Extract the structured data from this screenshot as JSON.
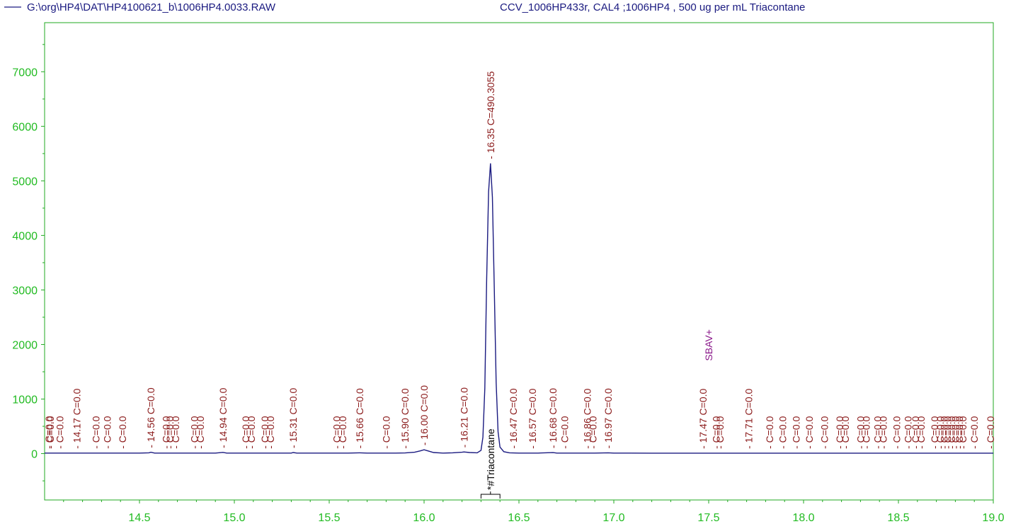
{
  "header": {
    "file_path": "G:\\org\\HP4\\DAT\\HP4100621_b\\1006HP4.0033.RAW",
    "sample_info": "CCV_1006HP433r, CAL4 ;1006HP4 , 500 ug per mL Triacontane"
  },
  "colors": {
    "trace": "#1a1a80",
    "axis_ticks": "#22bb22",
    "peak_labels": "#8b1a1a",
    "sbav_label": "#8b1a8b",
    "frame": "#22aa22"
  },
  "chart_data": {
    "type": "line",
    "title": "",
    "xlabel": "",
    "ylabel": "",
    "xlim": [
      14.0,
      19.0
    ],
    "ylim": [
      -850,
      7900
    ],
    "x_ticks": [
      14.5,
      15.0,
      15.5,
      16.0,
      16.5,
      17.0,
      17.5,
      18.0,
      18.5,
      19.0
    ],
    "x_tick_labels": [
      "14.5",
      "15.0",
      "15.5",
      "16.0",
      "16.5",
      "17.0",
      "17.5",
      "18.0",
      "18.5",
      "19.0"
    ],
    "y_ticks": [
      0,
      1000,
      2000,
      3000,
      4000,
      5000,
      6000,
      7000
    ],
    "y_tick_labels": [
      "0",
      "1000",
      "2000",
      "3000",
      "4000",
      "5000",
      "6000",
      "7000"
    ],
    "series": [
      {
        "x": [
          14.0,
          14.05,
          14.1,
          14.15,
          14.2,
          14.3,
          14.4,
          14.5,
          14.55,
          14.56,
          14.58,
          14.7,
          14.8,
          14.9,
          14.94,
          14.96,
          15.0,
          15.1,
          15.2,
          15.3,
          15.31,
          15.33,
          15.4,
          15.5,
          15.6,
          15.66,
          15.7,
          15.8,
          15.85,
          15.9,
          15.95,
          15.98,
          16.0,
          16.02,
          16.05,
          16.1,
          16.15,
          16.2,
          16.21,
          16.24,
          16.28,
          16.3,
          16.31,
          16.32,
          16.33,
          16.34,
          16.35,
          16.36,
          16.37,
          16.38,
          16.39,
          16.4,
          16.42,
          16.45,
          16.5,
          16.6,
          16.68,
          16.7,
          16.8,
          16.9,
          16.97,
          17.0,
          17.2,
          17.4,
          17.6,
          17.8,
          18.0,
          18.2,
          18.4,
          18.6,
          18.8,
          19.0
        ],
        "y": [
          10,
          10,
          10,
          10,
          10,
          10,
          10,
          10,
          15,
          25,
          10,
          10,
          10,
          10,
          22,
          10,
          10,
          10,
          10,
          10,
          20,
          10,
          10,
          10,
          10,
          15,
          10,
          10,
          10,
          12,
          25,
          50,
          70,
          50,
          20,
          10,
          15,
          25,
          30,
          20,
          15,
          60,
          300,
          1200,
          3200,
          4800,
          5320,
          4700,
          3000,
          1300,
          400,
          120,
          35,
          15,
          10,
          10,
          18,
          10,
          10,
          10,
          15,
          10,
          8,
          8,
          8,
          8,
          8,
          8,
          8,
          8,
          8,
          8
        ]
      }
    ],
    "peak_labels": [
      {
        "x": 14.0,
        "text": "C=0.0"
      },
      {
        "x": 14.03,
        "text": "C=0.0"
      },
      {
        "x": 14.08,
        "text": "C=0.0"
      },
      {
        "x": 14.17,
        "text": "14.17  C=0.0"
      },
      {
        "x": 14.27,
        "text": "C=0.0"
      },
      {
        "x": 14.33,
        "text": "C=0.0"
      },
      {
        "x": 14.41,
        "text": "C=0.0"
      },
      {
        "x": 14.56,
        "text": "14.56  C=0.0"
      },
      {
        "x": 14.64,
        "text": "C=0.0"
      },
      {
        "x": 14.66,
        "text": "C=0.0"
      },
      {
        "x": 14.69,
        "text": "C=0.0"
      },
      {
        "x": 14.79,
        "text": "C=0.0"
      },
      {
        "x": 14.82,
        "text": "C=0.0"
      },
      {
        "x": 14.94,
        "text": "14.94  C=0.0"
      },
      {
        "x": 15.06,
        "text": "C=0.0"
      },
      {
        "x": 15.09,
        "text": "C=0.0"
      },
      {
        "x": 15.16,
        "text": "C=0.0"
      },
      {
        "x": 15.19,
        "text": "C=0.0"
      },
      {
        "x": 15.31,
        "text": "15.31  C=0.0"
      },
      {
        "x": 15.54,
        "text": "C=0.0"
      },
      {
        "x": 15.57,
        "text": "C=0.0"
      },
      {
        "x": 15.66,
        "text": "15.66  C=0.0"
      },
      {
        "x": 15.8,
        "text": "C=0.0"
      },
      {
        "x": 15.9,
        "text": "15.90  C=0.0"
      },
      {
        "x": 16.0,
        "text": "16.00  C=0.0"
      },
      {
        "x": 16.21,
        "text": "16.21  C=0.0"
      },
      {
        "x": 16.35,
        "text": "16.35  C=490.3055"
      },
      {
        "x": 16.47,
        "text": "16.47  C=0.0"
      },
      {
        "x": 16.57,
        "text": "16.57  C=0.0"
      },
      {
        "x": 16.68,
        "text": "16.68  C=0.0"
      },
      {
        "x": 16.74,
        "text": "C=0.0"
      },
      {
        "x": 16.86,
        "text": "16.86  C=0.0"
      },
      {
        "x": 16.89,
        "text": "C=0.0"
      },
      {
        "x": 16.97,
        "text": "16.97  C=0.0"
      },
      {
        "x": 17.47,
        "text": "17.47  C=0.0"
      },
      {
        "x": 17.54,
        "text": "C=0.0"
      },
      {
        "x": 17.56,
        "text": "C=0.0"
      },
      {
        "x": 17.71,
        "text": "17.71  C=0.0"
      },
      {
        "x": 17.82,
        "text": "C=0.0"
      },
      {
        "x": 17.89,
        "text": "C=0.0"
      },
      {
        "x": 17.96,
        "text": "C=0.0"
      },
      {
        "x": 18.03,
        "text": "C=0.0"
      },
      {
        "x": 18.11,
        "text": "C=0.0"
      },
      {
        "x": 18.19,
        "text": "C=0.0"
      },
      {
        "x": 18.22,
        "text": "C=0.0"
      },
      {
        "x": 18.3,
        "text": "C=0.0"
      },
      {
        "x": 18.33,
        "text": "C=0.0"
      },
      {
        "x": 18.39,
        "text": "C=0.0"
      },
      {
        "x": 18.42,
        "text": "C=0.0"
      },
      {
        "x": 18.49,
        "text": "C=0.0"
      },
      {
        "x": 18.55,
        "text": "C=0.0"
      },
      {
        "x": 18.59,
        "text": "C=0.0"
      },
      {
        "x": 18.62,
        "text": "C=0.0"
      },
      {
        "x": 18.69,
        "text": "C=0.0"
      },
      {
        "x": 18.72,
        "text": "C=0.0"
      },
      {
        "x": 18.74,
        "text": "C=0.0"
      },
      {
        "x": 18.76,
        "text": "C=0.0"
      },
      {
        "x": 18.78,
        "text": "C=0.0"
      },
      {
        "x": 18.8,
        "text": "C=0.0"
      },
      {
        "x": 18.82,
        "text": "C=0.0"
      },
      {
        "x": 18.84,
        "text": "C=0.0"
      },
      {
        "x": 18.9,
        "text": "C=0.0"
      },
      {
        "x": 19.0,
        "text": "C=0.0"
      }
    ],
    "annotations": [
      {
        "x": 17.5,
        "text": "SBAV+",
        "kind": "event"
      },
      {
        "x": 16.35,
        "text": "*#Triacontane",
        "kind": "compound",
        "window": [
          16.3,
          16.4
        ]
      }
    ]
  }
}
